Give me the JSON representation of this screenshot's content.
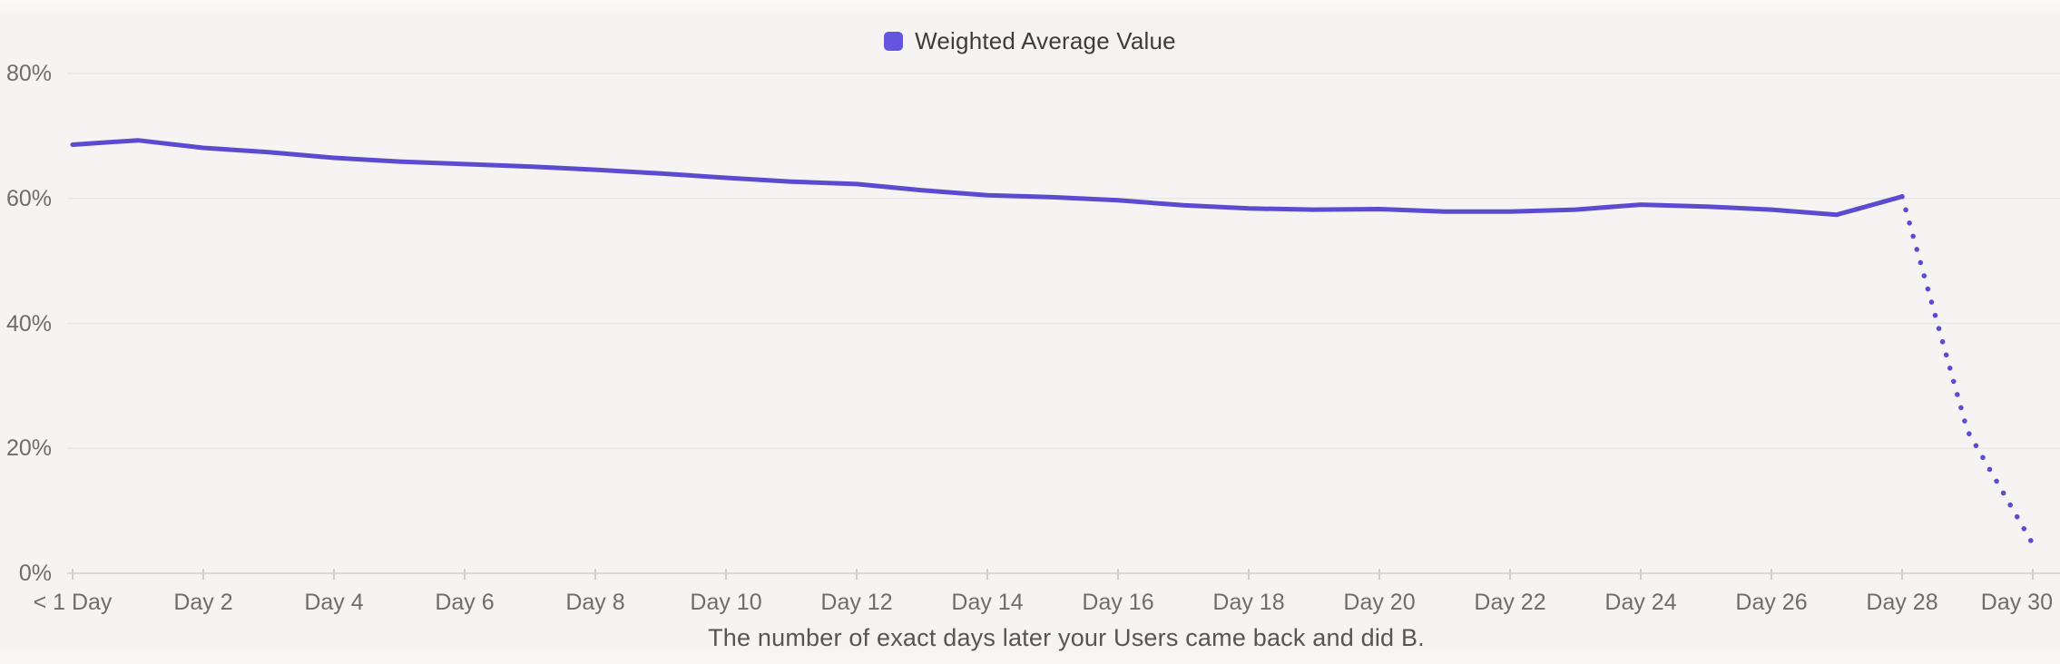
{
  "legend": {
    "label": "Weighted Average Value"
  },
  "caption": "The number of exact days later your Users came back and did B.",
  "colors": {
    "background": "#f5f4f2",
    "grid_line": "#e9e7e3",
    "zero_axis_line": "#dbd9d5",
    "tick_mark": "#d2cfcb",
    "series_line": "#5a4bd1",
    "legend_swatch": "#6355e0",
    "axis_label_text": "#6f6d6a",
    "legend_text": "#3e3c3a",
    "caption_text": "#575553"
  },
  "chart_data": {
    "type": "line",
    "title": "",
    "xlabel": "The number of exact days later your Users came back and did B.",
    "ylabel": "",
    "ylim": [
      0,
      80
    ],
    "xlim_days": [
      0,
      30
    ],
    "grid": "horizontal",
    "legend_position": "top-center",
    "y_ticks": [
      {
        "value": 0,
        "label": "0%"
      },
      {
        "value": 20,
        "label": "20%"
      },
      {
        "value": 40,
        "label": "40%"
      },
      {
        "value": 60,
        "label": "60%"
      },
      {
        "value": 80,
        "label": "80%"
      }
    ],
    "x_ticks": [
      {
        "day": 0,
        "label": "< 1 Day"
      },
      {
        "day": 2,
        "label": "Day 2"
      },
      {
        "day": 4,
        "label": "Day 4"
      },
      {
        "day": 6,
        "label": "Day 6"
      },
      {
        "day": 8,
        "label": "Day 8"
      },
      {
        "day": 10,
        "label": "Day 10"
      },
      {
        "day": 12,
        "label": "Day 12"
      },
      {
        "day": 14,
        "label": "Day 14"
      },
      {
        "day": 16,
        "label": "Day 16"
      },
      {
        "day": 18,
        "label": "Day 18"
      },
      {
        "day": 20,
        "label": "Day 20"
      },
      {
        "day": 22,
        "label": "Day 22"
      },
      {
        "day": 24,
        "label": "Day 24"
      },
      {
        "day": 26,
        "label": "Day 26"
      },
      {
        "day": 28,
        "label": "Day 28"
      },
      {
        "day": 30,
        "label": "Day 30"
      }
    ],
    "series": [
      {
        "name": "Weighted Average Value",
        "style": "solid",
        "projection_start_day": 28,
        "projection_style": "dotted",
        "days": [
          0,
          1,
          2,
          3,
          4,
          5,
          6,
          7,
          8,
          9,
          10,
          11,
          12,
          13,
          14,
          15,
          16,
          17,
          18,
          19,
          20,
          21,
          22,
          23,
          24,
          25,
          26,
          27,
          28,
          29,
          30
        ],
        "values": [
          68.6,
          69.3,
          68.1,
          67.4,
          66.5,
          65.9,
          65.5,
          65.1,
          64.6,
          64.0,
          63.3,
          62.7,
          62.3,
          61.3,
          60.5,
          60.2,
          59.7,
          58.9,
          58.4,
          58.2,
          58.3,
          57.9,
          57.9,
          58.2,
          59.0,
          58.7,
          58.2,
          57.4,
          60.3,
          22.8,
          4.7
        ]
      }
    ]
  }
}
